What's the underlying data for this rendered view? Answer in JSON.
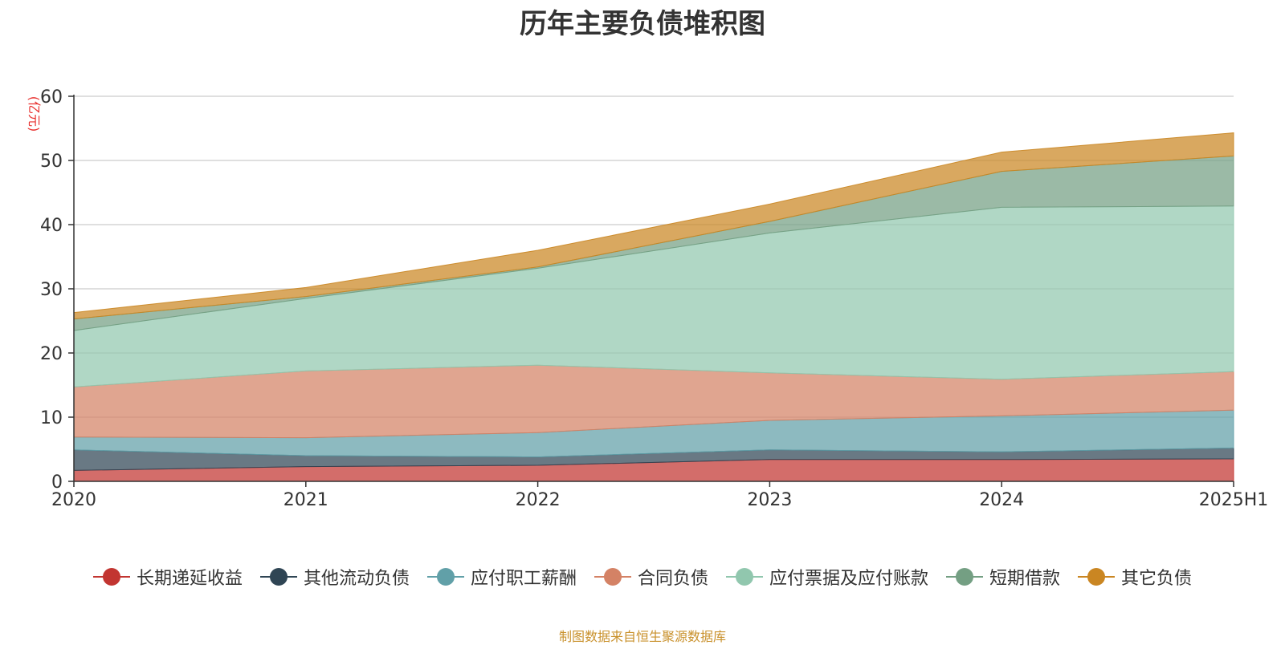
{
  "chart_data": {
    "type": "area",
    "stacked": true,
    "title": "历年主要负债堆积图",
    "ylabel": "(亿元)",
    "xlabel": "",
    "categories": [
      "2020",
      "2021",
      "2022",
      "2023",
      "2024",
      "2025H1"
    ],
    "ylim": [
      0,
      60
    ],
    "yticks": [
      0,
      10,
      20,
      30,
      40,
      50,
      60
    ],
    "grid": true,
    "legend_position": "bottom",
    "series": [
      {
        "name": "长期递延收益",
        "color": "#c23531",
        "values": [
          1.7,
          2.3,
          2.5,
          3.4,
          3.4,
          3.5
        ]
      },
      {
        "name": "其他流动负债",
        "color": "#2f4554",
        "values": [
          3.2,
          1.7,
          1.3,
          1.5,
          1.2,
          1.7
        ]
      },
      {
        "name": "应付职工薪酬",
        "color": "#61a0a8",
        "values": [
          2.0,
          2.8,
          3.8,
          4.6,
          5.6,
          5.9
        ]
      },
      {
        "name": "合同负债",
        "color": "#d48265",
        "values": [
          7.8,
          10.4,
          10.5,
          7.4,
          5.7,
          6.0
        ]
      },
      {
        "name": "应付票据及应付账款",
        "color": "#91c7ae",
        "values": [
          8.8,
          11.3,
          15.1,
          21.8,
          26.8,
          25.8
        ]
      },
      {
        "name": "短期借款",
        "color": "#749f83",
        "values": [
          1.8,
          0.3,
          0.2,
          1.8,
          5.6,
          7.8
        ]
      },
      {
        "name": "其它负债",
        "color": "#ca8622",
        "values": [
          1.0,
          1.4,
          2.6,
          2.7,
          3.0,
          3.6
        ]
      }
    ]
  },
  "footer": {
    "source_note": "制图数据来自恒生聚源数据库"
  }
}
